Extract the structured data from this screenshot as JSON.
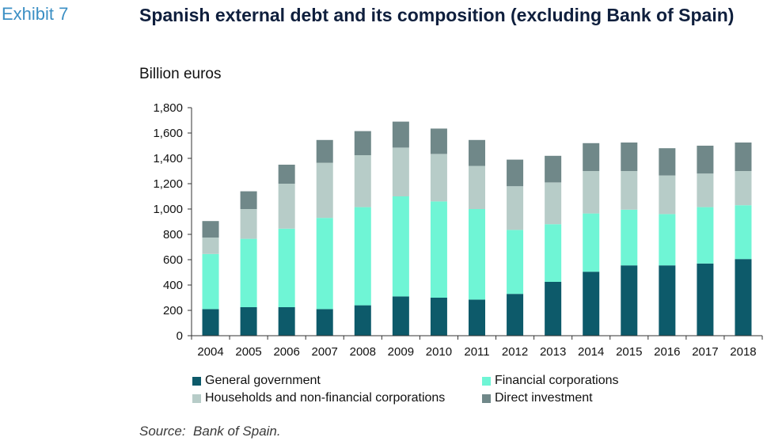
{
  "header": {
    "exhibit": "Exhibit 7",
    "title": "Spanish external debt and its composition (excluding Bank of Spain)",
    "unit": "Billion euros"
  },
  "footer": {
    "source": "Source:  Bank of Spain."
  },
  "chart_data": {
    "type": "bar",
    "stacked": true,
    "categories": [
      "2004",
      "2005",
      "2006",
      "2007",
      "2008",
      "2009",
      "2010",
      "2011",
      "2012",
      "2013",
      "2014",
      "2015",
      "2016",
      "2017",
      "2018"
    ],
    "ylim": [
      0,
      1800
    ],
    "yticks": [
      0,
      200,
      400,
      600,
      800,
      1000,
      1200,
      1400,
      1600,
      1800
    ],
    "ytick_labels": [
      "0",
      "200",
      "400",
      "600",
      "800",
      "1,000",
      "1,200",
      "1,400",
      "1,600",
      "1,800"
    ],
    "grid": false,
    "legend_position": "bottom",
    "series": [
      {
        "name": "General government",
        "color": "#0d5a6a",
        "values": [
          210,
          225,
          225,
          210,
          240,
          310,
          300,
          285,
          330,
          425,
          505,
          555,
          555,
          570,
          605
        ]
      },
      {
        "name": "Financial corporations",
        "color": "#6ff5d5",
        "values": [
          435,
          540,
          620,
          720,
          775,
          790,
          760,
          715,
          505,
          455,
          460,
          440,
          405,
          445,
          425
        ]
      },
      {
        "name": "Households and non-financial corporations",
        "color": "#b7ccc8",
        "values": [
          130,
          235,
          355,
          435,
          410,
          385,
          375,
          340,
          345,
          330,
          335,
          305,
          305,
          265,
          270
        ]
      },
      {
        "name": "Direct investment",
        "color": "#708889",
        "values": [
          130,
          140,
          150,
          180,
          190,
          205,
          200,
          205,
          210,
          210,
          220,
          225,
          215,
          220,
          225
        ]
      }
    ]
  }
}
